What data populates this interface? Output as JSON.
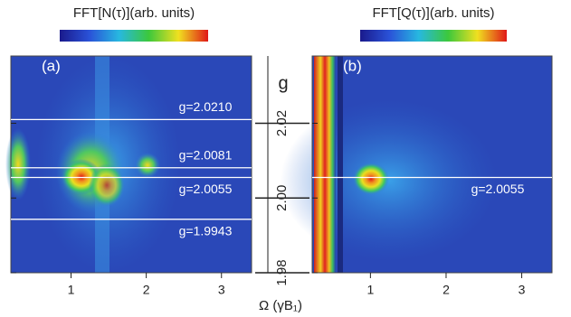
{
  "chart_data": [
    {
      "type": "heatmap",
      "panel_label": "(a)",
      "colorbar_label": "FFT[N(τ)](arb. units)",
      "xlim": [
        0.2,
        3.4
      ],
      "xticks": [
        1,
        2,
        3
      ],
      "lines": [
        {
          "value": 2.021,
          "label": "g=2.0210"
        },
        {
          "value": 2.0081,
          "label": "g=2.0081"
        },
        {
          "value": 2.0055,
          "label": "g=2.0055"
        },
        {
          "value": 1.9943,
          "label": "g=1.9943"
        }
      ]
    },
    {
      "type": "heatmap",
      "panel_label": "(b)",
      "colorbar_label": "FFT[Q(τ)](arb. units)",
      "xlim": [
        0.23,
        3.4
      ],
      "xticks": [
        1,
        2,
        3
      ],
      "lines": [
        {
          "value": 2.0055,
          "label": "g=2.0055"
        }
      ]
    }
  ],
  "shared_axes": {
    "xlabel": "Ω (γB₁)",
    "ylabel": "g",
    "ylim": [
      1.98,
      2.038
    ],
    "yticks": [
      1.98,
      {
        "value": 2,
        "label": "2.00"
      },
      2.02
    ]
  }
}
